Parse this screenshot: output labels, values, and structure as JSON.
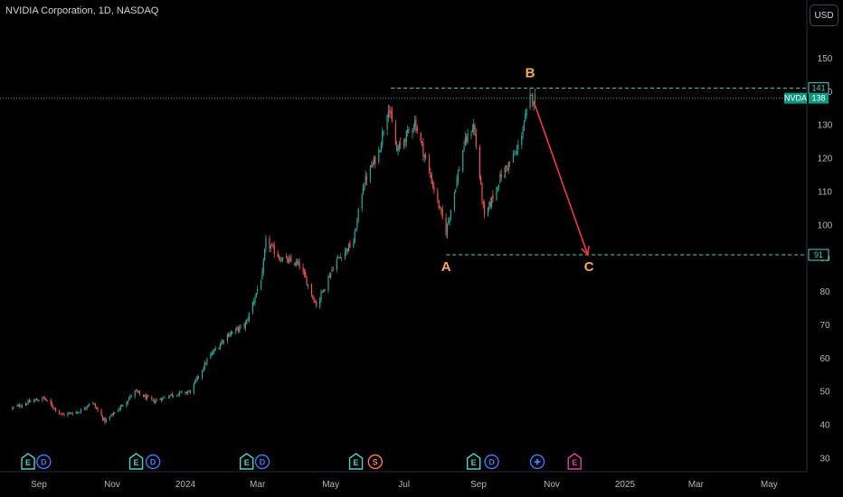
{
  "header": {
    "title": "NVIDIA Corporation, 1D, NASDAQ",
    "currency_button": "USD"
  },
  "colors": {
    "up": "#26a69a",
    "down": "#ef5350",
    "background": "#000000",
    "accent_cyan": "#4dd0c8",
    "wave_label": "#f7a95b",
    "arrow": "#f23645",
    "price_tag": "#089981"
  },
  "chart_data": {
    "type": "candlestick",
    "title": "NVIDIA Corporation, 1D, NASDAQ",
    "ylim": [
      25,
      165
    ],
    "y_ticks": [
      30,
      40,
      50,
      60,
      70,
      80,
      90,
      100,
      110,
      120,
      130,
      140,
      150
    ],
    "x_ticks": [
      "Sep",
      "Nov",
      "2024",
      "Mar",
      "May",
      "Jul",
      "Sep",
      "Nov",
      "2025",
      "Mar",
      "May"
    ],
    "x_tick_dates": [
      "2023-09-01",
      "2023-11-01",
      "2024-01-01",
      "2024-03-01",
      "2024-05-01",
      "2024-07-01",
      "2024-09-01",
      "2024-11-01",
      "2025-01-01",
      "2025-03-01",
      "2025-05-01"
    ],
    "close_path": [
      {
        "date": "2023-08-10",
        "close": 45
      },
      {
        "date": "2023-08-25",
        "close": 47
      },
      {
        "date": "2023-09-05",
        "close": 48
      },
      {
        "date": "2023-09-20",
        "close": 43
      },
      {
        "date": "2023-10-05",
        "close": 44
      },
      {
        "date": "2023-10-15",
        "close": 47
      },
      {
        "date": "2023-10-26",
        "close": 41
      },
      {
        "date": "2023-11-10",
        "close": 46
      },
      {
        "date": "2023-11-20",
        "close": 50
      },
      {
        "date": "2023-12-05",
        "close": 47
      },
      {
        "date": "2023-12-20",
        "close": 49
      },
      {
        "date": "2024-01-05",
        "close": 50
      },
      {
        "date": "2024-01-20",
        "close": 60
      },
      {
        "date": "2024-02-05",
        "close": 67
      },
      {
        "date": "2024-02-20",
        "close": 70
      },
      {
        "date": "2024-03-05",
        "close": 85
      },
      {
        "date": "2024-03-08",
        "close": 95
      },
      {
        "date": "2024-03-20",
        "close": 90
      },
      {
        "date": "2024-04-05",
        "close": 88
      },
      {
        "date": "2024-04-19",
        "close": 76
      },
      {
        "date": "2024-05-05",
        "close": 89
      },
      {
        "date": "2024-05-20",
        "close": 95
      },
      {
        "date": "2024-05-28",
        "close": 112
      },
      {
        "date": "2024-06-10",
        "close": 122
      },
      {
        "date": "2024-06-18",
        "close": 136
      },
      {
        "date": "2024-06-25",
        "close": 122
      },
      {
        "date": "2024-07-10",
        "close": 131
      },
      {
        "date": "2024-07-25",
        "close": 112
      },
      {
        "date": "2024-08-05",
        "close": 98
      },
      {
        "date": "2024-08-20",
        "close": 124
      },
      {
        "date": "2024-08-28",
        "close": 130
      },
      {
        "date": "2024-09-06",
        "close": 102
      },
      {
        "date": "2024-09-20",
        "close": 115
      },
      {
        "date": "2024-10-03",
        "close": 122
      },
      {
        "date": "2024-10-14",
        "close": 138
      },
      {
        "date": "2024-10-18",
        "close": 138
      }
    ],
    "annotations": {
      "wave_labels": [
        {
          "text": "A",
          "date": "2024-08-05",
          "price": 91
        },
        {
          "text": "B",
          "date": "2024-10-14",
          "price": 141
        },
        {
          "text": "C",
          "date": "2024-12-02",
          "price": 91
        }
      ],
      "levels": [
        {
          "price": 141,
          "label": "141",
          "from_date": "2024-06-20",
          "style": "dashed"
        },
        {
          "price": 91,
          "label": "91",
          "from_date": "2024-08-05",
          "style": "dashed"
        }
      ],
      "current_price": {
        "symbol": "NVDA",
        "price": 138
      },
      "arrow": {
        "from": {
          "date": "2024-10-17",
          "price": 137
        },
        "to": {
          "date": "2024-12-01",
          "price": 91
        }
      },
      "events": [
        {
          "date": "2023-08-23",
          "type": "E"
        },
        {
          "date": "2023-09-05",
          "type": "D"
        },
        {
          "date": "2023-11-21",
          "type": "E"
        },
        {
          "date": "2023-12-05",
          "type": "D"
        },
        {
          "date": "2024-02-21",
          "type": "E"
        },
        {
          "date": "2024-03-05",
          "type": "D"
        },
        {
          "date": "2024-05-22",
          "type": "E"
        },
        {
          "date": "2024-06-07",
          "type": "S"
        },
        {
          "date": "2024-08-28",
          "type": "E"
        },
        {
          "date": "2024-09-12",
          "type": "D"
        },
        {
          "date": "2024-10-20",
          "type": "star"
        },
        {
          "date": "2024-11-20",
          "type": "E"
        }
      ]
    }
  }
}
